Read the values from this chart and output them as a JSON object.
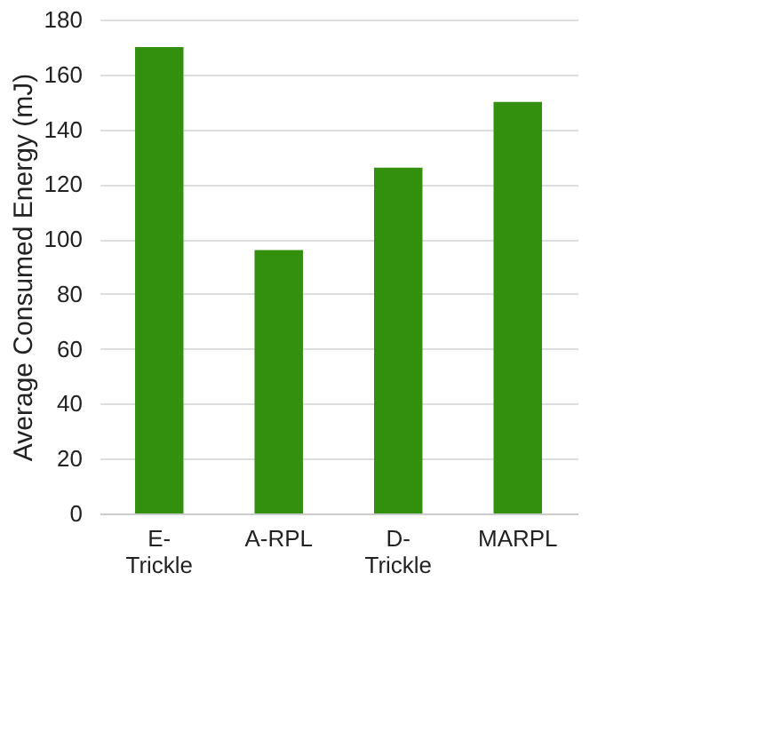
{
  "chart_data": {
    "type": "bar",
    "ylabel": "Average Consumed Energy (mJ)",
    "categories": [
      "E- Trickle",
      "A-RPL",
      "D- Trickle",
      "MARPL"
    ],
    "values": [
      170,
      96,
      126,
      150
    ],
    "color": "#33900f",
    "ylim": [
      0,
      180
    ],
    "yticks": [
      0,
      20,
      40,
      60,
      80,
      100,
      120,
      140,
      160,
      180
    ],
    "grid": "y"
  }
}
